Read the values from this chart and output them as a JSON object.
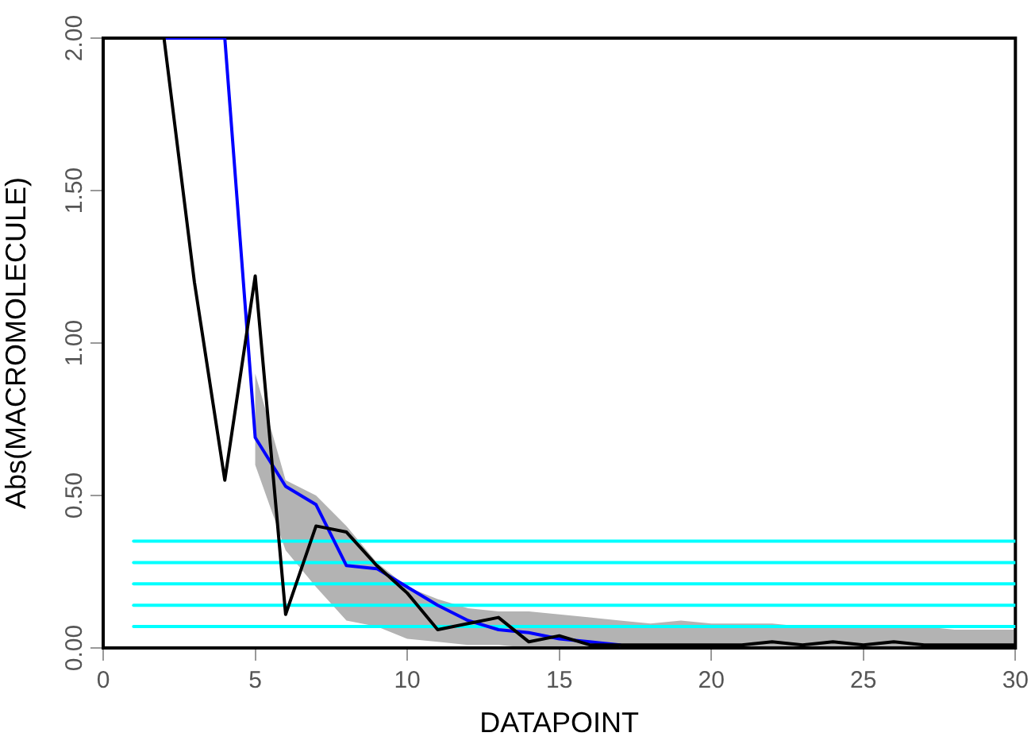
{
  "chart_data": {
    "type": "line",
    "xlabel": "DATAPOINT",
    "ylabel": "Abs(MACROMOLECULE)",
    "xlim": [
      0,
      30
    ],
    "xticks": [
      0,
      5,
      10,
      15,
      20,
      25,
      30
    ],
    "ylim": [
      0,
      2
    ],
    "yticks": [
      {
        "value": 0,
        "label": "0.00"
      },
      {
        "value": 0.5,
        "label": "0.50"
      },
      {
        "value": 1,
        "label": "1.00"
      },
      {
        "value": 1.5,
        "label": "1.50"
      },
      {
        "value": 2,
        "label": "2.00"
      }
    ],
    "grid": false,
    "legend": false,
    "marker": "none",
    "line_style": "solid",
    "series": [
      {
        "color": "#00ffff",
        "x": [
          1,
          30
        ],
        "values": [
          0.35,
          0.35
        ]
      },
      {
        "color": "#00ffff",
        "x": [
          1,
          30
        ],
        "values": [
          0.28,
          0.28
        ]
      },
      {
        "color": "#00ffff",
        "x": [
          1,
          30
        ],
        "values": [
          0.21,
          0.21
        ]
      },
      {
        "color": "#00ffff",
        "x": [
          1,
          30
        ],
        "values": [
          0.14,
          0.14
        ]
      },
      {
        "color": "#00ffff",
        "x": [
          1,
          30
        ],
        "values": [
          0.07,
          0.07
        ]
      },
      {
        "color": "#0000ff",
        "x": [
          2,
          3,
          4,
          5,
          6,
          7,
          8,
          9,
          10,
          11,
          12,
          13,
          14,
          15,
          16,
          17,
          18,
          19,
          20,
          21,
          22,
          23,
          24,
          25,
          26,
          27,
          28,
          29,
          30
        ],
        "values": [
          2.0,
          2.0,
          2.0,
          0.69,
          0.53,
          0.47,
          0.27,
          0.26,
          0.2,
          0.14,
          0.09,
          0.06,
          0.05,
          0.03,
          0.02,
          0.01,
          null,
          null,
          null,
          null,
          null,
          null,
          null,
          null,
          null,
          null,
          null,
          null,
          null
        ],
        "lower": [
          null,
          null,
          null,
          0.6,
          0.32,
          0.2,
          0.09,
          0.07,
          0.03,
          0.02,
          0.01,
          0.01,
          0,
          0,
          0,
          0,
          0,
          0,
          0,
          0,
          0,
          0,
          0,
          0,
          0,
          0,
          0,
          0,
          0
        ],
        "upper": [
          null,
          null,
          null,
          0.9,
          0.55,
          0.5,
          0.4,
          0.28,
          0.2,
          0.16,
          0.13,
          0.12,
          0.12,
          0.11,
          0.1,
          0.09,
          0.08,
          0.09,
          0.08,
          0.08,
          0.08,
          0.07,
          0.07,
          0.07,
          0.07,
          0.07,
          0.06,
          0.06,
          0.06
        ]
      },
      {
        "color": "#000000",
        "x": [
          2,
          3,
          4,
          5,
          6,
          7,
          8,
          9,
          10,
          11,
          12,
          13,
          14,
          15,
          16,
          17,
          18,
          19,
          20,
          21,
          22,
          23,
          24,
          25,
          26,
          27,
          28,
          29,
          30
        ],
        "values": [
          2.0,
          1.2,
          0.55,
          1.22,
          0.11,
          0.4,
          0.38,
          0.27,
          0.18,
          0.06,
          0.08,
          0.1,
          0.02,
          0.04,
          0.01,
          0.01,
          0.01,
          0.01,
          0.01,
          0.01,
          0.02,
          0.01,
          0.02,
          0.01,
          0.02,
          0.01,
          0.01,
          0.01,
          0.01
        ]
      }
    ]
  }
}
